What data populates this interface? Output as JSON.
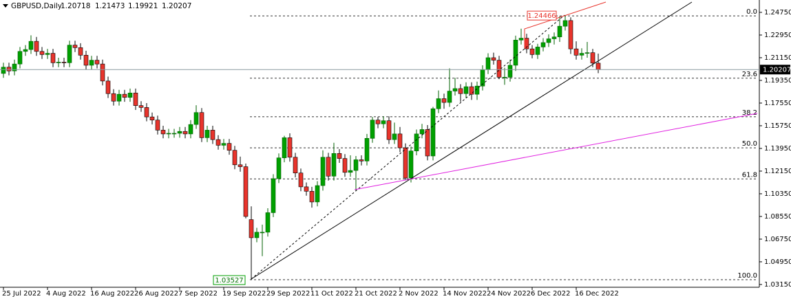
{
  "chart_data": {
    "type": "candlestick",
    "symbol": "GBPUSD,Daily",
    "up_color": "#00a000",
    "down_color": "#e8342c",
    "ylim": [
      1.0293,
      1.2573
    ],
    "yticks": [
      {
        "value": 1.2475,
        "label": "1.24750"
      },
      {
        "value": 1.2295,
        "label": "1.22950"
      },
      {
        "value": 1.2115,
        "label": "1.21150"
      },
      {
        "value": 1.1935,
        "label": "1.19350"
      },
      {
        "value": 1.1755,
        "label": "1.17550"
      },
      {
        "value": 1.1575,
        "label": "1.15750"
      },
      {
        "value": 1.1395,
        "label": "1.13950"
      },
      {
        "value": 1.1215,
        "label": "1.12150"
      },
      {
        "value": 1.1035,
        "label": "1.10350"
      },
      {
        "value": 1.0855,
        "label": "1.08550"
      },
      {
        "value": 1.0675,
        "label": "1.06750"
      },
      {
        "value": 1.0495,
        "label": "1.04950"
      },
      {
        "value": 1.0315,
        "label": "1.03150"
      }
    ],
    "categories": [
      "25 Jul 2022",
      null,
      null,
      null,
      null,
      null,
      null,
      null,
      "4 Aug 2022",
      null,
      null,
      null,
      null,
      null,
      null,
      null,
      "16 Aug 2022",
      null,
      null,
      null,
      null,
      null,
      null,
      null,
      "26 Aug 2022",
      null,
      null,
      null,
      null,
      null,
      null,
      null,
      "7 Sep 2022",
      null,
      null,
      null,
      null,
      null,
      null,
      null,
      "19 Sep 2022",
      null,
      null,
      null,
      null,
      null,
      null,
      null,
      "29 Sep 2022",
      null,
      null,
      null,
      null,
      null,
      null,
      null,
      "11 Oct 2022",
      null,
      null,
      null,
      null,
      null,
      null,
      null,
      "21 Oct 2022",
      null,
      null,
      null,
      null,
      null,
      null,
      null,
      "2 Nov 2022",
      null,
      null,
      null,
      null,
      null,
      null,
      null,
      "14 Nov 2022",
      null,
      null,
      null,
      null,
      null,
      null,
      null,
      "24 Nov 2022",
      null,
      null,
      null,
      null,
      null,
      null,
      null,
      "6 Dec 2022",
      null,
      null,
      null,
      null,
      null,
      null,
      null,
      "16 Dec 2022",
      null,
      null,
      null,
      null
    ],
    "open": [
      1.199,
      1.204,
      1.201,
      1.2065,
      1.2165,
      1.218,
      1.2245,
      1.2165,
      1.214,
      1.215,
      1.2075,
      1.208,
      1.2075,
      1.2215,
      1.2195,
      1.2135,
      1.2055,
      1.2095,
      1.2065,
      1.193,
      1.183,
      1.177,
      1.1825,
      1.18,
      1.1835,
      1.1735,
      1.172,
      1.1645,
      1.162,
      1.154,
      1.151,
      1.1515,
      1.1515,
      1.153,
      1.151,
      1.1585,
      1.168,
      1.148,
      1.154,
      1.1465,
      1.142,
      1.1435,
      1.138,
      1.1265,
      1.125,
      1.083,
      1.0686,
      1.073,
      1.073,
      1.0885,
      1.1155,
      1.132,
      1.148,
      1.1325,
      1.12,
      1.109,
      1.1055,
      1.097,
      1.11,
      1.1325,
      1.1175,
      1.1355,
      1.1315,
      1.1205,
      1.122,
      1.1305,
      1.1295,
      1.1475,
      1.162,
      1.159,
      1.1615,
      1.1465,
      1.151,
      1.14,
      1.116,
      1.1375,
      1.151,
      1.1545,
      1.1335,
      1.171,
      1.179,
      1.176,
      1.185,
      1.187,
      1.183,
      1.1885,
      1.1825,
      1.189,
      1.202,
      1.2115,
      1.2095,
      1.196,
      1.196,
      1.2055,
      1.2255,
      1.227,
      1.2185,
      1.214,
      1.22,
      1.2235,
      1.2265,
      1.228,
      1.2365,
      1.241,
      1.2185,
      1.2135,
      1.215,
      1.2155,
      1.20718
    ],
    "high": [
      1.2075,
      1.2075,
      1.21,
      1.22,
      1.2215,
      1.2293,
      1.228,
      1.22,
      1.2185,
      1.2185,
      1.2115,
      1.2115,
      1.225,
      1.225,
      1.223,
      1.217,
      1.213,
      1.213,
      1.21,
      1.1965,
      1.1865,
      1.186,
      1.186,
      1.187,
      1.187,
      1.177,
      1.1755,
      1.168,
      1.1655,
      1.1575,
      1.155,
      1.155,
      1.1565,
      1.1565,
      1.162,
      1.1738,
      1.1715,
      1.1575,
      1.1575,
      1.15,
      1.147,
      1.147,
      1.1415,
      1.133,
      1.1275,
      1.0935,
      1.0765,
      1.079,
      1.092,
      1.119,
      1.1355,
      1.1495,
      1.1515,
      1.136,
      1.1235,
      1.1125,
      1.109,
      1.1135,
      1.138,
      1.136,
      1.144,
      1.139,
      1.135,
      1.134,
      1.1335,
      1.134,
      1.151,
      1.1645,
      1.1645,
      1.165,
      1.165,
      1.16,
      1.1565,
      1.1435,
      1.141,
      1.1545,
      1.159,
      1.158,
      1.1725,
      1.1855,
      1.183,
      1.203,
      1.1955,
      1.1905,
      1.192,
      1.192,
      1.1925,
      1.2055,
      1.215,
      1.2155,
      1.213,
      1.2035,
      1.21,
      1.229,
      1.2345,
      1.2305,
      1.2215,
      1.2225,
      1.227,
      1.23,
      1.2315,
      1.2445,
      1.24466,
      1.2435,
      1.2245,
      1.219,
      1.224,
      1.2185,
      1.21473
    ],
    "low": [
      1.1955,
      1.1975,
      1.1975,
      1.203,
      1.213,
      1.2145,
      1.213,
      1.2105,
      1.2105,
      1.204,
      1.204,
      1.204,
      1.204,
      1.216,
      1.21,
      1.202,
      1.202,
      1.203,
      1.1895,
      1.1795,
      1.1735,
      1.1735,
      1.1765,
      1.1765,
      1.17,
      1.1685,
      1.161,
      1.1585,
      1.1505,
      1.1475,
      1.1475,
      1.148,
      1.148,
      1.1475,
      1.1475,
      1.155,
      1.1445,
      1.1445,
      1.143,
      1.1385,
      1.1385,
      1.1345,
      1.123,
      1.121,
      1.084,
      1.03527,
      1.065,
      1.054,
      1.0695,
      1.085,
      1.112,
      1.1285,
      1.129,
      1.1165,
      1.1055,
      1.102,
      1.0925,
      1.0935,
      1.106,
      1.114,
      1.114,
      1.128,
      1.117,
      1.117,
      1.106,
      1.126,
      1.126,
      1.144,
      1.1555,
      1.1555,
      1.143,
      1.143,
      1.1365,
      1.1145,
      1.1125,
      1.134,
      1.1475,
      1.13,
      1.13,
      1.1675,
      1.171,
      1.1725,
      1.1815,
      1.1765,
      1.1795,
      1.178,
      1.178,
      1.1855,
      1.1985,
      1.206,
      1.1945,
      1.19,
      1.1925,
      1.201,
      1.222,
      1.215,
      1.211,
      1.2105,
      1.2165,
      1.22,
      1.222,
      1.224,
      1.233,
      1.2145,
      1.21,
      1.21,
      1.2115,
      1.204,
      1.19921
    ],
    "close": [
      1.204,
      1.201,
      1.2065,
      1.2165,
      1.218,
      1.2245,
      1.2165,
      1.214,
      1.215,
      1.2075,
      1.208,
      1.2075,
      1.2215,
      1.2195,
      1.2135,
      1.2055,
      1.2095,
      1.2065,
      1.193,
      1.183,
      1.177,
      1.1825,
      1.18,
      1.1835,
      1.1735,
      1.172,
      1.1645,
      1.162,
      1.154,
      1.151,
      1.1515,
      1.1515,
      1.153,
      1.151,
      1.1585,
      1.168,
      1.148,
      1.154,
      1.1465,
      1.142,
      1.1435,
      1.138,
      1.1265,
      1.125,
      1.0855,
      1.0686,
      1.073,
      1.073,
      1.0885,
      1.1155,
      1.132,
      1.148,
      1.1325,
      1.12,
      1.109,
      1.1055,
      1.097,
      1.11,
      1.1325,
      1.1175,
      1.1355,
      1.1315,
      1.1205,
      1.122,
      1.1305,
      1.1295,
      1.1475,
      1.162,
      1.159,
      1.1615,
      1.1465,
      1.151,
      1.14,
      1.116,
      1.1375,
      1.151,
      1.1545,
      1.1335,
      1.171,
      1.179,
      1.176,
      1.185,
      1.187,
      1.183,
      1.1885,
      1.1825,
      1.189,
      1.202,
      1.2115,
      1.2095,
      1.196,
      1.196,
      1.2055,
      1.2255,
      1.227,
      1.2185,
      1.214,
      1.22,
      1.2235,
      1.2265,
      1.228,
      1.2365,
      1.241,
      1.2185,
      1.2135,
      1.215,
      1.2155,
      1.2072,
      1.20207
    ],
    "fibo": {
      "levels": [
        {
          "value": 0,
          "label": "0.0"
        },
        23.6,
        38.2,
        {
          "value": 50,
          "label": "50.0"
        },
        61.8,
        {
          "value": 100,
          "label": "100.0"
        }
      ]
    }
  }
}
